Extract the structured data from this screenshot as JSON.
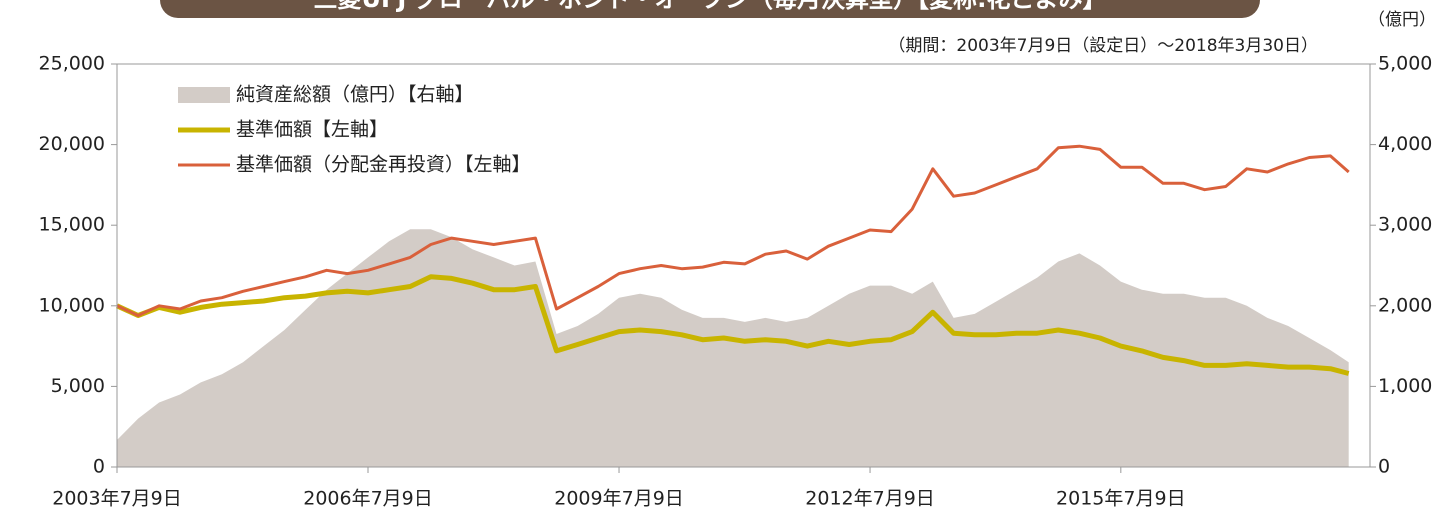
{
  "chart_data": {
    "type": "line",
    "title": "三菱UFJ グローバル・ボンド・オープン（毎月決算型）【愛称:花こよみ】",
    "subtitle": "（期間：2003年7月9日（設定日）～2018年3月30日）",
    "y2_label": "（億円）",
    "x": [
      "2003-07-09",
      "2003-10-09",
      "2004-01-09",
      "2004-04-09",
      "2004-07-09",
      "2004-10-09",
      "2005-01-09",
      "2005-04-09",
      "2005-07-09",
      "2005-10-09",
      "2006-01-09",
      "2006-04-09",
      "2006-07-09",
      "2006-10-09",
      "2007-01-09",
      "2007-04-09",
      "2007-07-09",
      "2007-10-09",
      "2008-01-09",
      "2008-04-09",
      "2008-07-09",
      "2008-10-09",
      "2009-01-09",
      "2009-04-09",
      "2009-07-09",
      "2009-10-09",
      "2010-01-09",
      "2010-04-09",
      "2010-07-09",
      "2010-10-09",
      "2011-01-09",
      "2011-04-09",
      "2011-07-09",
      "2011-10-09",
      "2012-01-09",
      "2012-04-09",
      "2012-07-09",
      "2012-10-09",
      "2013-01-09",
      "2013-04-09",
      "2013-07-09",
      "2013-10-09",
      "2014-01-09",
      "2014-04-09",
      "2014-07-09",
      "2014-10-09",
      "2015-01-09",
      "2015-04-09",
      "2015-07-09",
      "2015-10-09",
      "2016-01-09",
      "2016-04-09",
      "2016-07-09",
      "2016-10-09",
      "2017-01-09",
      "2017-04-09",
      "2017-07-09",
      "2017-10-09",
      "2018-01-09",
      "2018-03-30"
    ],
    "series": [
      {
        "name": "純資産総額（億円）【右軸】",
        "type": "area",
        "axis": "y2",
        "color": "#d3ccc7",
        "values": [
          335,
          600,
          800,
          900,
          1050,
          1150,
          1300,
          1500,
          1700,
          1950,
          2200,
          2400,
          2600,
          2800,
          2950,
          2950,
          2850,
          2700,
          2600,
          2500,
          2550,
          1650,
          1750,
          1900,
          2100,
          2150,
          2100,
          1950,
          1850,
          1850,
          1800,
          1850,
          1800,
          1850,
          2000,
          2150,
          2250,
          2250,
          2150,
          2300,
          1850,
          1900,
          2050,
          2200,
          2350,
          2550,
          2650,
          2500,
          2300,
          2200,
          2150,
          2150,
          2100,
          2100,
          2000,
          1850,
          1750,
          1600,
          1450,
          1300
        ]
      },
      {
        "name": "基準価額【左軸】",
        "color": "#c8b400",
        "values": [
          10000,
          9400,
          9900,
          9600,
          9900,
          10100,
          10200,
          10300,
          10500,
          10600,
          10800,
          10900,
          10800,
          11000,
          11200,
          11800,
          11700,
          11400,
          11000,
          11000,
          11200,
          7200,
          7600,
          8000,
          8400,
          8500,
          8400,
          8200,
          7900,
          8000,
          7800,
          7900,
          7800,
          7500,
          7800,
          7600,
          7800,
          7900,
          8400,
          9600,
          8300,
          8200,
          8200,
          8300,
          8300,
          8500,
          8300,
          8000,
          7500,
          7200,
          6800,
          6600,
          6300,
          6300,
          6400,
          6300,
          6200,
          6200,
          6100,
          5800
        ]
      },
      {
        "name": "基準価額（分配金再投資）【左軸】",
        "color": "#d9603b",
        "values": [
          10000,
          9400,
          10000,
          9800,
          10300,
          10500,
          10900,
          11200,
          11500,
          11800,
          12200,
          12000,
          12200,
          12600,
          13000,
          13800,
          14200,
          14000,
          13800,
          14000,
          14200,
          9800,
          10500,
          11200,
          12000,
          12300,
          12500,
          12300,
          12400,
          12700,
          12600,
          13200,
          13400,
          12900,
          13700,
          14200,
          14700,
          14600,
          16000,
          18500,
          16800,
          17000,
          17500,
          18000,
          18500,
          19800,
          19900,
          19700,
          18600,
          18600,
          17600,
          17600,
          17200,
          17400,
          18500,
          18300,
          18800,
          19200,
          19300,
          18300
        ]
      }
    ],
    "xlim": [
      "2003-07-09",
      "2018-07-01"
    ],
    "xticks": [
      {
        "value": "2003-07-09",
        "label": "2003年7月9日"
      },
      {
        "value": "2006-07-09",
        "label": "2006年7月9日"
      },
      {
        "value": "2009-07-09",
        "label": "2009年7月9日"
      },
      {
        "value": "2012-07-09",
        "label": "2012年7月9日"
      },
      {
        "value": "2015-07-09",
        "label": "2015年7月9日"
      }
    ],
    "ylim": [
      0,
      25000
    ],
    "yticks": [
      0,
      {
        "value": 5000,
        "label": "5,000"
      },
      {
        "value": 10000,
        "label": "10,000"
      },
      {
        "value": 15000,
        "label": "15,000"
      },
      {
        "value": 20000,
        "label": "20,000"
      },
      {
        "value": 25000,
        "label": "25,000"
      }
    ],
    "y2lim": [
      0,
      5000
    ],
    "y2ticks": [
      0,
      {
        "value": 1000,
        "label": "1,000"
      },
      {
        "value": 2000,
        "label": "2,000"
      },
      {
        "value": 3000,
        "label": "3,000"
      },
      {
        "value": 4000,
        "label": "4,000"
      },
      {
        "value": 5000,
        "label": "5,000"
      }
    ],
    "grid": false
  }
}
